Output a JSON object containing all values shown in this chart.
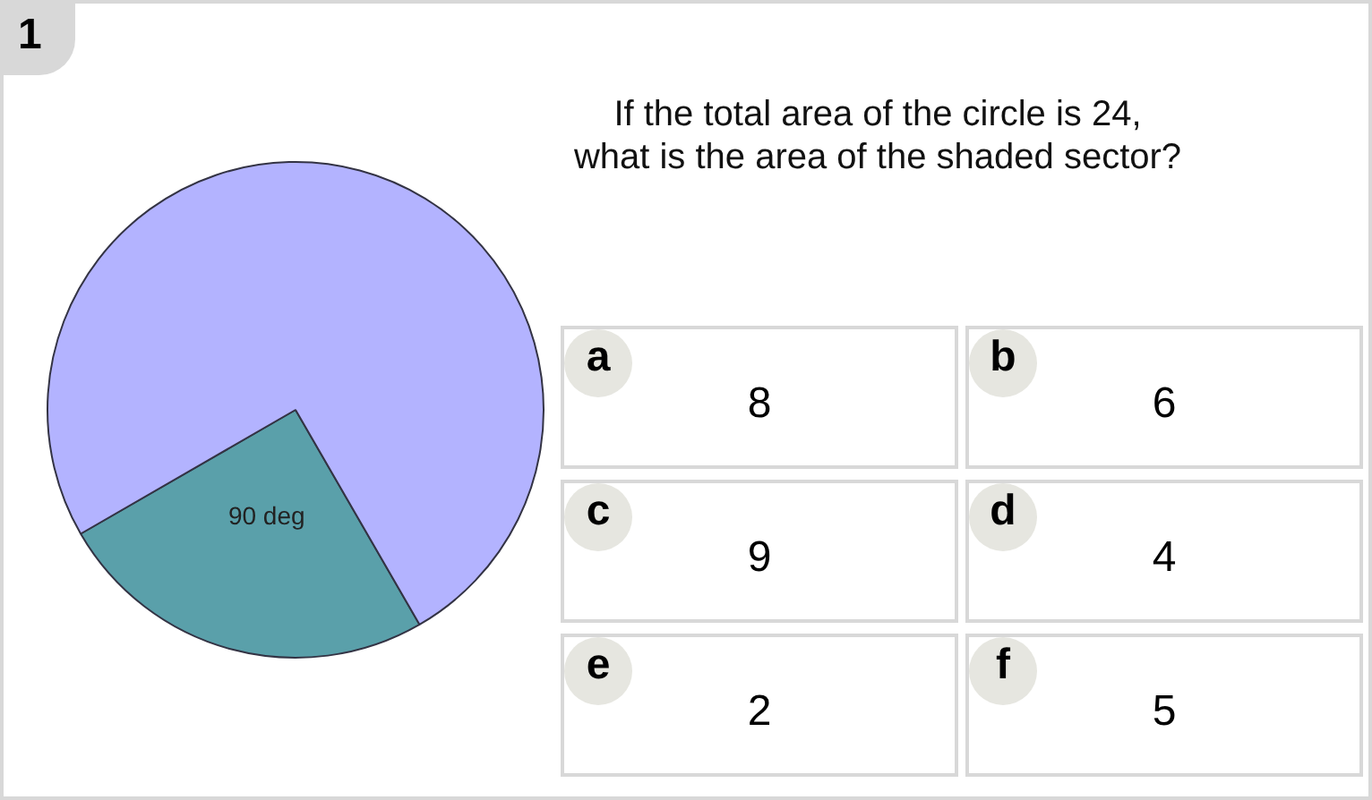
{
  "chart_data": {
    "type": "pie",
    "title": "If the total area of the circle is 24, what is the area of the shaded sector?",
    "categories": [
      "90 deg",
      null
    ],
    "values": [
      25,
      75
    ],
    "colors": [
      "#5aa0aa",
      "#b3b3ff"
    ],
    "legend": false,
    "annotations": [
      "1",
      "a",
      "8",
      "b",
      "6",
      "c",
      "9",
      "d",
      "4",
      "e",
      "2",
      "f",
      "5"
    ]
  }
}
